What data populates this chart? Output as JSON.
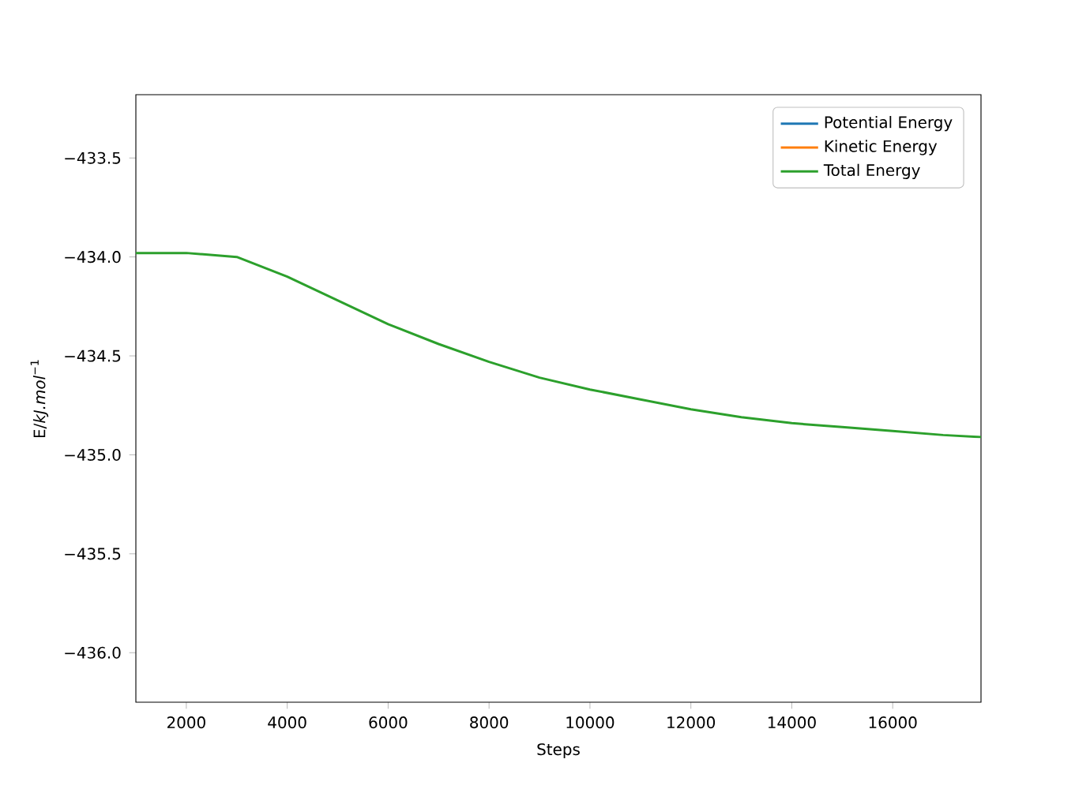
{
  "chart_data": {
    "type": "line",
    "xlabel": "Steps",
    "ylabel": "E/*kJ.mol*$^{−1}$",
    "x": [
      1000,
      2000,
      3000,
      4000,
      5000,
      6000,
      7000,
      8000,
      9000,
      10000,
      11000,
      12000,
      13000,
      14000,
      15000,
      16000,
      17000,
      17750
    ],
    "series": [
      {
        "name": "Potential Energy",
        "color": "#1f77b4",
        "values": [
          null,
          null,
          null,
          null,
          null,
          null,
          null,
          null,
          null,
          null,
          null,
          null,
          null,
          null,
          null,
          null,
          null,
          null
        ]
      },
      {
        "name": "Kinetic Energy",
        "color": "#ff7f0e",
        "values": [
          null,
          null,
          null,
          null,
          null,
          null,
          null,
          null,
          null,
          null,
          null,
          null,
          null,
          null,
          null,
          null,
          null,
          null
        ]
      },
      {
        "name": "Total Energy",
        "color": "#2ca02c",
        "values": [
          -433.98,
          -433.98,
          -434.0,
          -434.1,
          -434.22,
          -434.34,
          -434.44,
          -434.53,
          -434.61,
          -434.67,
          -434.72,
          -434.77,
          -434.81,
          -434.84,
          -434.86,
          -434.88,
          -434.9,
          -434.91
        ]
      }
    ],
    "xlim": [
      1000,
      17750
    ],
    "ylim": [
      -436.25,
      -433.18
    ],
    "xticks": [
      2000,
      4000,
      6000,
      8000,
      10000,
      12000,
      14000,
      16000
    ],
    "yticks": [
      {
        "value": -436.0,
        "label": "−436.0"
      },
      {
        "value": -435.5,
        "label": "−435.5"
      },
      {
        "value": -435.0,
        "label": "−435.0"
      },
      {
        "value": -434.5,
        "label": "−434.5"
      },
      {
        "value": -434.0,
        "label": "−434.0"
      },
      {
        "value": -433.5,
        "label": "−433.5"
      }
    ],
    "legend": "top right",
    "grid": false,
    "marker": "none",
    "line_style": "solid"
  }
}
